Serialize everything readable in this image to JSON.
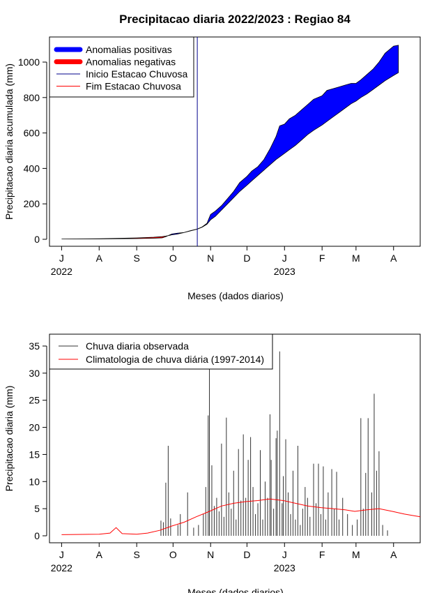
{
  "title": "Precipitacao diaria 2022/2023 : Regiao 84",
  "chart_data": [
    {
      "type": "area",
      "xlabel": "Meses (dados diarios)",
      "ylabel": "Precipitacao diaria acumulada (mm)",
      "ylim": [
        0,
        1100
      ],
      "yticks": [
        0,
        200,
        400,
        600,
        800,
        1000
      ],
      "xlim": [
        "2022-06-21",
        "2023-04-23"
      ],
      "xticks": [
        {
          "date": "2022-07-01",
          "label": "J"
        },
        {
          "date": "2022-08-01",
          "label": "A"
        },
        {
          "date": "2022-09-01",
          "label": "S"
        },
        {
          "date": "2022-10-01",
          "label": "O"
        },
        {
          "date": "2022-11-01",
          "label": "N"
        },
        {
          "date": "2022-12-01",
          "label": "D"
        },
        {
          "date": "2023-01-01",
          "label": "J"
        },
        {
          "date": "2023-02-01",
          "label": "F"
        },
        {
          "date": "2023-03-01",
          "label": "M"
        },
        {
          "date": "2023-04-01",
          "label": "A"
        }
      ],
      "year_labels": [
        {
          "date": "2022-07-01",
          "label": "2022"
        },
        {
          "date": "2023-01-01",
          "label": "2023"
        }
      ],
      "legend_position": "top-left",
      "legend": [
        {
          "label": "Anomalias positivas",
          "color": "#0000ff",
          "style": "thick"
        },
        {
          "label": "Anomalias negativas",
          "color": "#ff0000",
          "style": "thick"
        },
        {
          "label": "Inicio Estacao Chuvosa",
          "color": "#00008b",
          "style": "thin"
        },
        {
          "label": "Fim Estacao Chuvosa",
          "color": "#ff0000",
          "style": "thin"
        }
      ],
      "rainy_season_start": "2022-10-21",
      "series": [
        {
          "name": "observed cumulative",
          "x": [
            "2022-07-01",
            "2022-08-01",
            "2022-08-15",
            "2022-09-01",
            "2022-09-15",
            "2022-09-22",
            "2022-09-25",
            "2022-09-30",
            "2022-10-05",
            "2022-10-10",
            "2022-10-15",
            "2022-10-21",
            "2022-10-25",
            "2022-10-29",
            "2022-11-01",
            "2022-11-05",
            "2022-11-10",
            "2022-11-15",
            "2022-11-20",
            "2022-11-25",
            "2022-12-01",
            "2022-12-05",
            "2022-12-10",
            "2022-12-15",
            "2022-12-20",
            "2022-12-25",
            "2022-12-28",
            "2023-01-01",
            "2023-01-05",
            "2023-01-10",
            "2023-01-15",
            "2023-01-20",
            "2023-01-25",
            "2023-02-01",
            "2023-02-05",
            "2023-02-10",
            "2023-02-15",
            "2023-02-20",
            "2023-02-25",
            "2023-03-01",
            "2023-03-05",
            "2023-03-10",
            "2023-03-15",
            "2023-03-20",
            "2023-03-25",
            "2023-04-01",
            "2023-04-05"
          ],
          "y": [
            2,
            2,
            3,
            4,
            6,
            8,
            15,
            30,
            35,
            38,
            48,
            58,
            70,
            90,
            140,
            160,
            190,
            230,
            270,
            320,
            355,
            385,
            410,
            450,
            510,
            580,
            640,
            650,
            680,
            700,
            730,
            760,
            790,
            810,
            840,
            850,
            860,
            870,
            880,
            880,
            900,
            930,
            960,
            1000,
            1050,
            1090,
            1095
          ]
        },
        {
          "name": "climatology cumulative",
          "x": [
            "2022-07-01",
            "2022-08-01",
            "2022-08-15",
            "2022-09-01",
            "2022-09-15",
            "2022-09-22",
            "2022-09-25",
            "2022-09-30",
            "2022-10-05",
            "2022-10-10",
            "2022-10-15",
            "2022-10-21",
            "2022-10-25",
            "2022-10-29",
            "2022-11-01",
            "2022-11-05",
            "2022-11-10",
            "2022-11-15",
            "2022-11-20",
            "2022-11-25",
            "2022-12-01",
            "2022-12-05",
            "2022-12-10",
            "2022-12-15",
            "2022-12-20",
            "2022-12-25",
            "2022-12-28",
            "2023-01-01",
            "2023-01-05",
            "2023-01-10",
            "2023-01-15",
            "2023-01-20",
            "2023-01-25",
            "2023-02-01",
            "2023-02-05",
            "2023-02-10",
            "2023-02-15",
            "2023-02-20",
            "2023-02-25",
            "2023-03-01",
            "2023-03-05",
            "2023-03-10",
            "2023-03-15",
            "2023-03-20",
            "2023-03-25",
            "2023-04-01",
            "2023-04-05"
          ],
          "y": [
            2,
            3,
            5,
            8,
            12,
            15,
            18,
            25,
            30,
            38,
            47,
            57,
            68,
            85,
            110,
            130,
            165,
            200,
            235,
            270,
            305,
            330,
            360,
            390,
            420,
            450,
            465,
            485,
            505,
            530,
            560,
            590,
            615,
            645,
            665,
            690,
            715,
            740,
            765,
            780,
            800,
            820,
            845,
            870,
            895,
            925,
            940
          ]
        }
      ]
    },
    {
      "type": "bar",
      "xlabel": "Meses (dados diarios)",
      "ylabel": "Precipitacao diaria (mm)",
      "ylim": [
        0,
        37
      ],
      "yticks": [
        0,
        5,
        10,
        15,
        20,
        25,
        30,
        35
      ],
      "xlim": [
        "2022-06-21",
        "2023-04-23"
      ],
      "xticks": [
        {
          "date": "2022-07-01",
          "label": "J"
        },
        {
          "date": "2022-08-01",
          "label": "A"
        },
        {
          "date": "2022-09-01",
          "label": "S"
        },
        {
          "date": "2022-10-01",
          "label": "O"
        },
        {
          "date": "2022-11-01",
          "label": "N"
        },
        {
          "date": "2022-12-01",
          "label": "D"
        },
        {
          "date": "2023-01-01",
          "label": "J"
        },
        {
          "date": "2023-02-01",
          "label": "F"
        },
        {
          "date": "2023-03-01",
          "label": "M"
        },
        {
          "date": "2023-04-01",
          "label": "A"
        }
      ],
      "year_labels": [
        {
          "date": "2022-07-01",
          "label": "2022"
        },
        {
          "date": "2023-01-01",
          "label": "2023"
        }
      ],
      "legend_position": "top-left",
      "legend": [
        {
          "label": "Chuva diaria observada",
          "color": "#333333"
        },
        {
          "label": "Climatologia de chuva diária (1997-2014)",
          "color": "#ff0000"
        }
      ],
      "bars": [
        {
          "x": "2022-09-21",
          "y": 2.8
        },
        {
          "x": "2022-09-23",
          "y": 2.5
        },
        {
          "x": "2022-09-25",
          "y": 9.8
        },
        {
          "x": "2022-09-27",
          "y": 16.6
        },
        {
          "x": "2022-09-29",
          "y": 3.2
        },
        {
          "x": "2022-10-05",
          "y": 2.0
        },
        {
          "x": "2022-10-07",
          "y": 4.0
        },
        {
          "x": "2022-10-13",
          "y": 8.0
        },
        {
          "x": "2022-10-18",
          "y": 1.5
        },
        {
          "x": "2022-10-22",
          "y": 2.0
        },
        {
          "x": "2022-10-26",
          "y": 4.0
        },
        {
          "x": "2022-10-28",
          "y": 9.0
        },
        {
          "x": "2022-10-30",
          "y": 22.2
        },
        {
          "x": "2022-10-31",
          "y": 31.0
        },
        {
          "x": "2022-11-02",
          "y": 13.0
        },
        {
          "x": "2022-11-04",
          "y": 5.5
        },
        {
          "x": "2022-11-06",
          "y": 7.0
        },
        {
          "x": "2022-11-08",
          "y": 4.5
        },
        {
          "x": "2022-11-10",
          "y": 17.0
        },
        {
          "x": "2022-11-12",
          "y": 3.5
        },
        {
          "x": "2022-11-14",
          "y": 21.8
        },
        {
          "x": "2022-11-16",
          "y": 8.0
        },
        {
          "x": "2022-11-18",
          "y": 5.0
        },
        {
          "x": "2022-11-20",
          "y": 12.0
        },
        {
          "x": "2022-11-22",
          "y": 3.0
        },
        {
          "x": "2022-11-24",
          "y": 16.0
        },
        {
          "x": "2022-11-26",
          "y": 6.5
        },
        {
          "x": "2022-11-28",
          "y": 18.7
        },
        {
          "x": "2022-11-30",
          "y": 7.0
        },
        {
          "x": "2022-12-02",
          "y": 14.0
        },
        {
          "x": "2022-12-04",
          "y": 18.2
        },
        {
          "x": "2022-12-06",
          "y": 9.0
        },
        {
          "x": "2022-12-08",
          "y": 4.0
        },
        {
          "x": "2022-12-10",
          "y": 6.0
        },
        {
          "x": "2022-12-12",
          "y": 15.8
        },
        {
          "x": "2022-12-14",
          "y": 3.0
        },
        {
          "x": "2022-12-16",
          "y": 10.0
        },
        {
          "x": "2022-12-18",
          "y": 7.0
        },
        {
          "x": "2022-12-20",
          "y": 22.4
        },
        {
          "x": "2022-12-21",
          "y": 14.0
        },
        {
          "x": "2022-12-23",
          "y": 5.0
        },
        {
          "x": "2022-12-25",
          "y": 18.0
        },
        {
          "x": "2022-12-26",
          "y": 19.4
        },
        {
          "x": "2022-12-28",
          "y": 34.0
        },
        {
          "x": "2022-12-30",
          "y": 6.0
        },
        {
          "x": "2022-12-31",
          "y": 11.0
        },
        {
          "x": "2023-01-02",
          "y": 17.8
        },
        {
          "x": "2023-01-04",
          "y": 8.0
        },
        {
          "x": "2023-01-06",
          "y": 4.0
        },
        {
          "x": "2023-01-08",
          "y": 12.0
        },
        {
          "x": "2023-01-10",
          "y": 3.0
        },
        {
          "x": "2023-01-12",
          "y": 16.6
        },
        {
          "x": "2023-01-14",
          "y": 2.0
        },
        {
          "x": "2023-01-16",
          "y": 5.0
        },
        {
          "x": "2023-01-18",
          "y": 9.0
        },
        {
          "x": "2023-01-20",
          "y": 7.0
        },
        {
          "x": "2023-01-22",
          "y": 3.5
        },
        {
          "x": "2023-01-25",
          "y": 13.3
        },
        {
          "x": "2023-01-27",
          "y": 6.0
        },
        {
          "x": "2023-01-29",
          "y": 13.3
        },
        {
          "x": "2023-01-31",
          "y": 4.0
        },
        {
          "x": "2023-02-02",
          "y": 12.8
        },
        {
          "x": "2023-02-04",
          "y": 3.0
        },
        {
          "x": "2023-02-06",
          "y": 8.0
        },
        {
          "x": "2023-02-09",
          "y": 12.3
        },
        {
          "x": "2023-02-11",
          "y": 5.0
        },
        {
          "x": "2023-02-13",
          "y": 11.8
        },
        {
          "x": "2023-02-15",
          "y": 3.0
        },
        {
          "x": "2023-02-18",
          "y": 7.0
        },
        {
          "x": "2023-02-22",
          "y": 4.0
        },
        {
          "x": "2023-02-26",
          "y": 2.0
        },
        {
          "x": "2023-03-02",
          "y": 3.0
        },
        {
          "x": "2023-03-05",
          "y": 21.7
        },
        {
          "x": "2023-03-07",
          "y": 5.0
        },
        {
          "x": "2023-03-09",
          "y": 11.6
        },
        {
          "x": "2023-03-11",
          "y": 21.7
        },
        {
          "x": "2023-03-14",
          "y": 8.0
        },
        {
          "x": "2023-03-16",
          "y": 26.2
        },
        {
          "x": "2023-03-18",
          "y": 12.0
        },
        {
          "x": "2023-03-20",
          "y": 15.6
        },
        {
          "x": "2023-03-23",
          "y": 2.0
        },
        {
          "x": "2023-03-27",
          "y": 1.0
        }
      ],
      "climatology": {
        "x": [
          "2022-07-01",
          "2022-08-01",
          "2022-08-10",
          "2022-08-15",
          "2022-08-20",
          "2022-09-01",
          "2022-09-10",
          "2022-09-20",
          "2022-09-30",
          "2022-10-10",
          "2022-10-20",
          "2022-10-31",
          "2022-11-10",
          "2022-11-20",
          "2022-11-30",
          "2022-12-10",
          "2022-12-20",
          "2022-12-31",
          "2023-01-10",
          "2023-01-20",
          "2023-01-31",
          "2023-02-10",
          "2023-02-20",
          "2023-02-28",
          "2023-03-10",
          "2023-03-20",
          "2023-03-31",
          "2023-04-10",
          "2023-04-23"
        ],
        "y": [
          0.2,
          0.3,
          0.5,
          1.5,
          0.4,
          0.3,
          0.5,
          1.0,
          1.8,
          2.5,
          3.5,
          4.5,
          5.5,
          6.0,
          6.3,
          6.5,
          6.8,
          6.5,
          6.0,
          5.5,
          5.2,
          5.0,
          4.8,
          4.5,
          4.8,
          5.0,
          4.5,
          4.0,
          3.5
        ]
      }
    }
  ]
}
